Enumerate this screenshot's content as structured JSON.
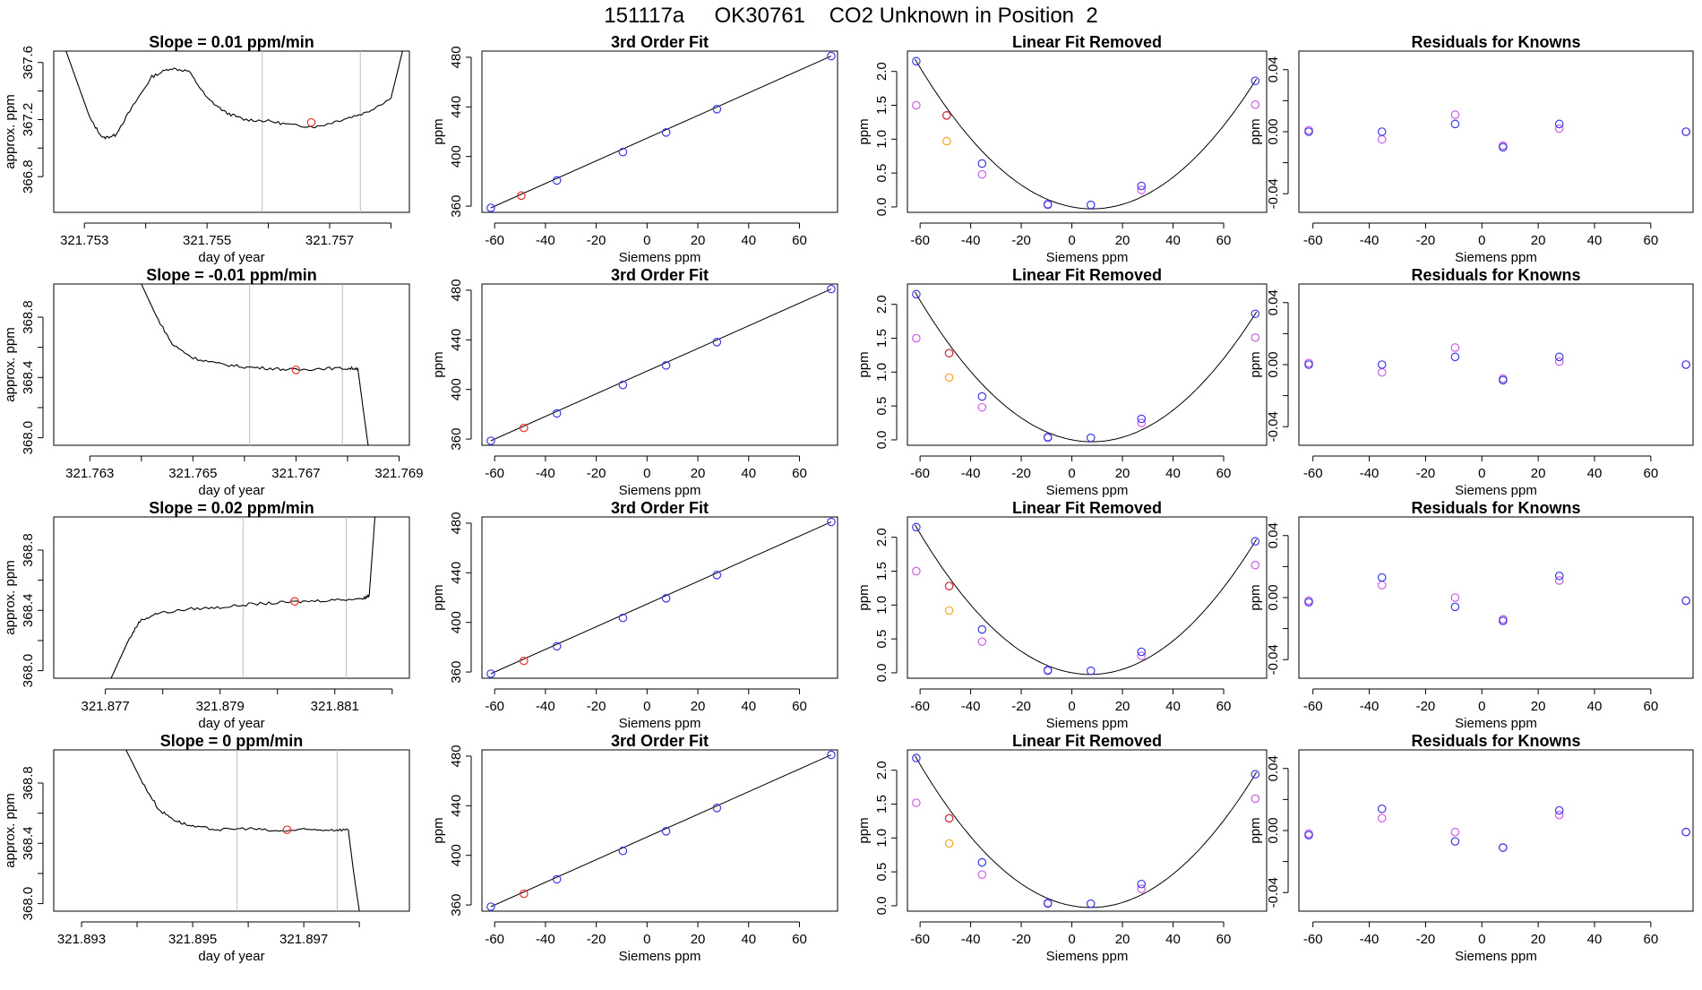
{
  "suptitle": "151117a     OK30761    CO2 Unknown in Position  2",
  "colors": {
    "trace": "#000000",
    "red": "#e8312b",
    "blue": "#3a3ae6",
    "magenta": "#cc5ce6",
    "orange": "#f5a623",
    "vline": "#bdbdbd",
    "fit": "#000000"
  },
  "rows": [
    {
      "trace": {
        "type": "line",
        "title": "Slope =  0.01  ppm/min",
        "xlabel": "day of year",
        "ylabel": "approx. ppm",
        "xlim": [
          321.7525,
          321.7583
        ],
        "ylim": [
          366.55,
          367.68
        ],
        "xticks": [
          {
            "v": 321.753,
            "l": "321.753"
          },
          {
            "v": 321.754,
            "l": ""
          },
          {
            "v": 321.755,
            "l": "321.755"
          },
          {
            "v": 321.756,
            "l": ""
          },
          {
            "v": 321.757,
            "l": "321.757"
          },
          {
            "v": 321.758,
            "l": ""
          }
        ],
        "yticks": [
          {
            "v": 366.8,
            "l": "366.8"
          },
          {
            "v": 367.0,
            "l": ""
          },
          {
            "v": 367.2,
            "l": "367.2"
          },
          {
            "v": 367.4,
            "l": ""
          },
          {
            "v": 367.6,
            "l": "367.6"
          }
        ],
        "vlines": [
          321.7559,
          321.7575
        ],
        "series": [
          321.7527,
          367.68,
          321.7531,
          367.2,
          321.7533,
          367.07,
          321.7535,
          367.09,
          321.7538,
          367.3,
          321.7541,
          367.5,
          321.7544,
          367.56,
          321.7547,
          367.54,
          321.755,
          367.35,
          321.7553,
          367.25,
          321.7556,
          367.2,
          321.756,
          367.19,
          321.7564,
          367.16,
          321.7568,
          367.15,
          321.7572,
          367.2,
          321.7576,
          367.25,
          321.758,
          367.35,
          321.7582,
          367.7
        ],
        "marker": [
          321.7567,
          367.18
        ]
      },
      "fit": {
        "title": "3rd Order Fit",
        "xlabel": "Siemens ppm",
        "ylabel": "ppm",
        "red": [
          -49.5,
          368.5
        ]
      },
      "linfit": {
        "title": "Linear Fit Removed",
        "xlabel": "Siemens ppm",
        "ylabel": "ppm",
        "blue": [
          [
            -61.5,
            2.15
          ],
          [
            -49.5,
            1.35
          ],
          [
            -35.5,
            0.64
          ],
          [
            -9.5,
            0.04
          ],
          [
            7.5,
            0.03
          ],
          [
            27.5,
            0.31
          ],
          [
            72.5,
            1.86
          ]
        ],
        "magenta": [
          [
            -61.5,
            1.5
          ],
          [
            -35.5,
            0.48
          ],
          [
            -9.5,
            0.03
          ],
          [
            27.5,
            0.25
          ],
          [
            72.5,
            1.51
          ]
        ],
        "orange": [
          [
            -49.5,
            0.97
          ]
        ],
        "red": [
          [
            -49.5,
            1.35
          ]
        ]
      },
      "resid": {
        "title": "Residuals for Knowns",
        "xlabel": "Siemens ppm",
        "blue": [
          [
            -61.5,
            0.0
          ],
          [
            -35.5,
            0.0
          ],
          [
            -9.5,
            0.005
          ],
          [
            7.5,
            -0.01
          ],
          [
            27.5,
            0.005
          ],
          [
            72.5,
            0.0
          ]
        ],
        "magenta": [
          [
            -61.5,
            0.001
          ],
          [
            -35.5,
            -0.005
          ],
          [
            -9.5,
            0.011
          ],
          [
            7.5,
            -0.009
          ],
          [
            27.5,
            0.002
          ],
          [
            72.5,
            0.0
          ]
        ]
      }
    },
    {
      "trace": {
        "type": "line",
        "title": "Slope =  -0.01  ppm/min",
        "xlabel": "day of year",
        "ylabel": "approx. ppm",
        "xlim": [
          321.7623,
          321.7692
        ],
        "ylim": [
          367.95,
          369.02
        ],
        "xticks": [
          {
            "v": 321.763,
            "l": "321.763"
          },
          {
            "v": 321.764,
            "l": ""
          },
          {
            "v": 321.765,
            "l": "321.765"
          },
          {
            "v": 321.766,
            "l": ""
          },
          {
            "v": 321.767,
            "l": "321.767"
          },
          {
            "v": 321.768,
            "l": ""
          },
          {
            "v": 321.769,
            "l": "321.769"
          }
        ],
        "yticks": [
          {
            "v": 368.0,
            "l": "368.0"
          },
          {
            "v": 368.2,
            "l": ""
          },
          {
            "v": 368.4,
            "l": "368.4"
          },
          {
            "v": 368.6,
            "l": ""
          },
          {
            "v": 368.8,
            "l": "368.8"
          }
        ],
        "vlines": [
          321.7661,
          321.7679
        ],
        "series": [
          321.764,
          369.02,
          321.7643,
          368.8,
          321.7646,
          368.62,
          321.765,
          368.53,
          321.7655,
          368.49,
          321.766,
          368.47,
          321.7665,
          368.46,
          321.767,
          368.45,
          321.7675,
          368.46,
          321.768,
          368.46,
          321.7682,
          368.46,
          321.7683,
          368.2,
          321.7684,
          367.95
        ],
        "marker": [
          321.767,
          368.45
        ]
      },
      "fit": {
        "title": "3rd Order Fit",
        "xlabel": "Siemens ppm",
        "ylabel": "ppm",
        "red": [
          -48.5,
          369.0
        ]
      },
      "linfit": {
        "title": "Linear Fit Removed",
        "xlabel": "Siemens ppm",
        "ylabel": "ppm",
        "blue": [
          [
            -61.5,
            2.15
          ],
          [
            -48.5,
            1.28
          ],
          [
            -35.5,
            0.64
          ],
          [
            -9.5,
            0.04
          ],
          [
            7.5,
            0.03
          ],
          [
            27.5,
            0.31
          ],
          [
            72.5,
            1.86
          ]
        ],
        "magenta": [
          [
            -61.5,
            1.5
          ],
          [
            -35.5,
            0.48
          ],
          [
            -9.5,
            0.03
          ],
          [
            27.5,
            0.25
          ],
          [
            72.5,
            1.51
          ]
        ],
        "orange": [
          [
            -48.5,
            0.92
          ]
        ],
        "red": [
          [
            -48.5,
            1.28
          ]
        ]
      },
      "resid": {
        "title": "Residuals for Knowns",
        "xlabel": "Siemens ppm",
        "blue": [
          [
            -61.5,
            0.0
          ],
          [
            -35.5,
            0.0
          ],
          [
            -9.5,
            0.005
          ],
          [
            7.5,
            -0.01
          ],
          [
            27.5,
            0.005
          ],
          [
            72.5,
            0.0
          ]
        ],
        "magenta": [
          [
            -61.5,
            0.001
          ],
          [
            -35.5,
            -0.005
          ],
          [
            -9.5,
            0.011
          ],
          [
            7.5,
            -0.009
          ],
          [
            27.5,
            0.002
          ],
          [
            72.5,
            0.0
          ]
        ]
      }
    },
    {
      "trace": {
        "type": "line",
        "title": "Slope =  0.02  ppm/min",
        "xlabel": "day of year",
        "ylabel": "approx. ppm",
        "xlim": [
          321.8761,
          321.8823
        ],
        "ylim": [
          367.95,
          369.02
        ],
        "xticks": [
          {
            "v": 321.877,
            "l": "321.877"
          },
          {
            "v": 321.878,
            "l": ""
          },
          {
            "v": 321.879,
            "l": "321.879"
          },
          {
            "v": 321.88,
            "l": ""
          },
          {
            "v": 321.881,
            "l": "321.881"
          },
          {
            "v": 321.882,
            "l": ""
          }
        ],
        "yticks": [
          {
            "v": 368.0,
            "l": "368.0"
          },
          {
            "v": 368.2,
            "l": ""
          },
          {
            "v": 368.4,
            "l": "368.4"
          },
          {
            "v": 368.6,
            "l": ""
          },
          {
            "v": 368.8,
            "l": "368.8"
          }
        ],
        "vlines": [
          321.8794,
          321.8812
        ],
        "series": [
          321.8771,
          367.95,
          321.8774,
          368.2,
          321.8776,
          368.33,
          321.8779,
          368.38,
          321.8785,
          368.41,
          321.879,
          368.42,
          321.8795,
          368.44,
          321.88,
          368.45,
          321.8805,
          368.46,
          321.881,
          368.47,
          321.8815,
          368.48,
          321.8816,
          368.5,
          321.8817,
          369.02
        ],
        "marker": [
          321.8803,
          368.46
        ]
      },
      "fit": {
        "title": "3rd Order Fit",
        "xlabel": "Siemens ppm",
        "ylabel": "ppm",
        "red": [
          -48.5,
          369.0
        ]
      },
      "linfit": {
        "title": "Linear Fit Removed",
        "xlabel": "Siemens ppm",
        "ylabel": "ppm",
        "blue": [
          [
            -61.5,
            2.15
          ],
          [
            -48.5,
            1.28
          ],
          [
            -35.5,
            0.64
          ],
          [
            -9.5,
            0.04
          ],
          [
            7.5,
            0.03
          ],
          [
            27.5,
            0.31
          ],
          [
            72.5,
            1.94
          ]
        ],
        "magenta": [
          [
            -61.5,
            1.5
          ],
          [
            -35.5,
            0.46
          ],
          [
            -9.5,
            0.03
          ],
          [
            27.5,
            0.25
          ],
          [
            72.5,
            1.59
          ]
        ],
        "orange": [
          [
            -48.5,
            0.92
          ]
        ],
        "red": [
          [
            -48.5,
            1.28
          ]
        ]
      },
      "resid": {
        "title": "Residuals for Knowns",
        "xlabel": "Siemens ppm",
        "blue": [
          [
            -61.5,
            -0.003
          ],
          [
            -35.5,
            0.013
          ],
          [
            -9.5,
            -0.006
          ],
          [
            7.5,
            -0.015
          ],
          [
            27.5,
            0.014
          ],
          [
            72.5,
            -0.002
          ]
        ],
        "magenta": [
          [
            -61.5,
            -0.002
          ],
          [
            -35.5,
            0.008
          ],
          [
            -9.5,
            0.0
          ],
          [
            7.5,
            -0.014
          ],
          [
            27.5,
            0.011
          ],
          [
            72.5,
            -0.002
          ]
        ]
      }
    },
    {
      "trace": {
        "type": "line",
        "title": "Slope =  0  ppm/min",
        "xlabel": "day of year",
        "ylabel": "approx. ppm",
        "xlim": [
          321.8925,
          321.8989
        ],
        "ylim": [
          367.95,
          369.02
        ],
        "xticks": [
          {
            "v": 321.893,
            "l": "321.893"
          },
          {
            "v": 321.894,
            "l": ""
          },
          {
            "v": 321.895,
            "l": "321.895"
          },
          {
            "v": 321.896,
            "l": ""
          },
          {
            "v": 321.897,
            "l": "321.897"
          },
          {
            "v": 321.898,
            "l": ""
          }
        ],
        "yticks": [
          {
            "v": 368.0,
            "l": "368.0"
          },
          {
            "v": 368.2,
            "l": ""
          },
          {
            "v": 368.4,
            "l": "368.4"
          },
          {
            "v": 368.6,
            "l": ""
          },
          {
            "v": 368.8,
            "l": "368.8"
          }
        ],
        "vlines": [
          321.8958,
          321.8976
        ],
        "series": [
          321.8938,
          369.02,
          321.8941,
          368.8,
          321.8944,
          368.62,
          321.8947,
          368.55,
          321.895,
          368.51,
          321.8955,
          368.49,
          321.896,
          368.5,
          321.8965,
          368.48,
          321.897,
          368.49,
          321.8975,
          368.49,
          321.8978,
          368.49,
          321.8979,
          368.2,
          321.898,
          367.95
        ],
        "marker": [
          321.8967,
          368.49
        ]
      },
      "fit": {
        "title": "3rd Order Fit",
        "xlabel": "Siemens ppm",
        "ylabel": "ppm",
        "red": [
          -48.5,
          369.0
        ]
      },
      "linfit": {
        "title": "Linear Fit Removed",
        "xlabel": "Siemens ppm",
        "ylabel": "ppm",
        "blue": [
          [
            -61.5,
            2.18
          ],
          [
            -48.5,
            1.29
          ],
          [
            -35.5,
            0.64
          ],
          [
            -9.5,
            0.04
          ],
          [
            7.5,
            0.03
          ],
          [
            27.5,
            0.32
          ],
          [
            72.5,
            1.94
          ]
        ],
        "magenta": [
          [
            -61.5,
            1.52
          ],
          [
            -35.5,
            0.46
          ],
          [
            -9.5,
            0.03
          ],
          [
            27.5,
            0.25
          ],
          [
            72.5,
            1.58
          ]
        ],
        "orange": [
          [
            -48.5,
            0.92
          ]
        ],
        "red": [
          [
            -48.5,
            1.29
          ]
        ]
      },
      "resid": {
        "title": "Residuals for Knowns",
        "xlabel": "Siemens ppm",
        "blue": [
          [
            -61.5,
            -0.003
          ],
          [
            -35.5,
            0.014
          ],
          [
            -9.5,
            -0.007
          ],
          [
            7.5,
            -0.011
          ],
          [
            27.5,
            0.013
          ],
          [
            72.5,
            -0.001
          ]
        ],
        "magenta": [
          [
            -61.5,
            -0.002
          ],
          [
            -35.5,
            0.008
          ],
          [
            -9.5,
            -0.001
          ],
          [
            7.5,
            -0.011
          ],
          [
            27.5,
            0.01
          ],
          [
            72.5,
            -0.001
          ]
        ]
      }
    }
  ],
  "chart_data": {
    "type": "line",
    "title": "151117a     OK30761    CO2 Unknown in Position  2",
    "fit_axes": {
      "xlim": [
        -65,
        75
      ],
      "ylim": [
        355,
        485
      ],
      "xticks": [
        -60,
        -40,
        -20,
        0,
        20,
        40,
        60
      ],
      "yticks": [
        360,
        400,
        440,
        480
      ]
    },
    "fit_points": {
      "x": [
        -61.5,
        -35.5,
        -9.5,
        7.5,
        27.5,
        72.5
      ],
      "y": [
        358.6,
        380.7,
        403.6,
        419.4,
        438.2,
        481.0
      ]
    },
    "linfit_axes": {
      "xlim": [
        -65,
        77
      ],
      "ylim": [
        -0.08,
        2.3
      ],
      "xticks": [
        -60,
        -40,
        -20,
        0,
        20,
        40,
        60
      ],
      "yticks": [
        0.0,
        0.5,
        1.0,
        1.5,
        2.0
      ],
      "ytick_labels": [
        "0.0",
        "0.5",
        "1.0",
        "1.5",
        "2.0"
      ]
    },
    "resid_axes": {
      "xlim": [
        -65,
        75
      ],
      "ylim": [
        -0.052,
        0.052
      ],
      "xticks": [
        -60,
        -40,
        -20,
        0,
        20,
        40,
        60
      ],
      "yticks": [
        -0.04,
        -0.02,
        0.0,
        0.02,
        0.04
      ],
      "ytick_labels": [
        "-0.04",
        "",
        "0.00",
        "",
        "0.04"
      ]
    }
  }
}
